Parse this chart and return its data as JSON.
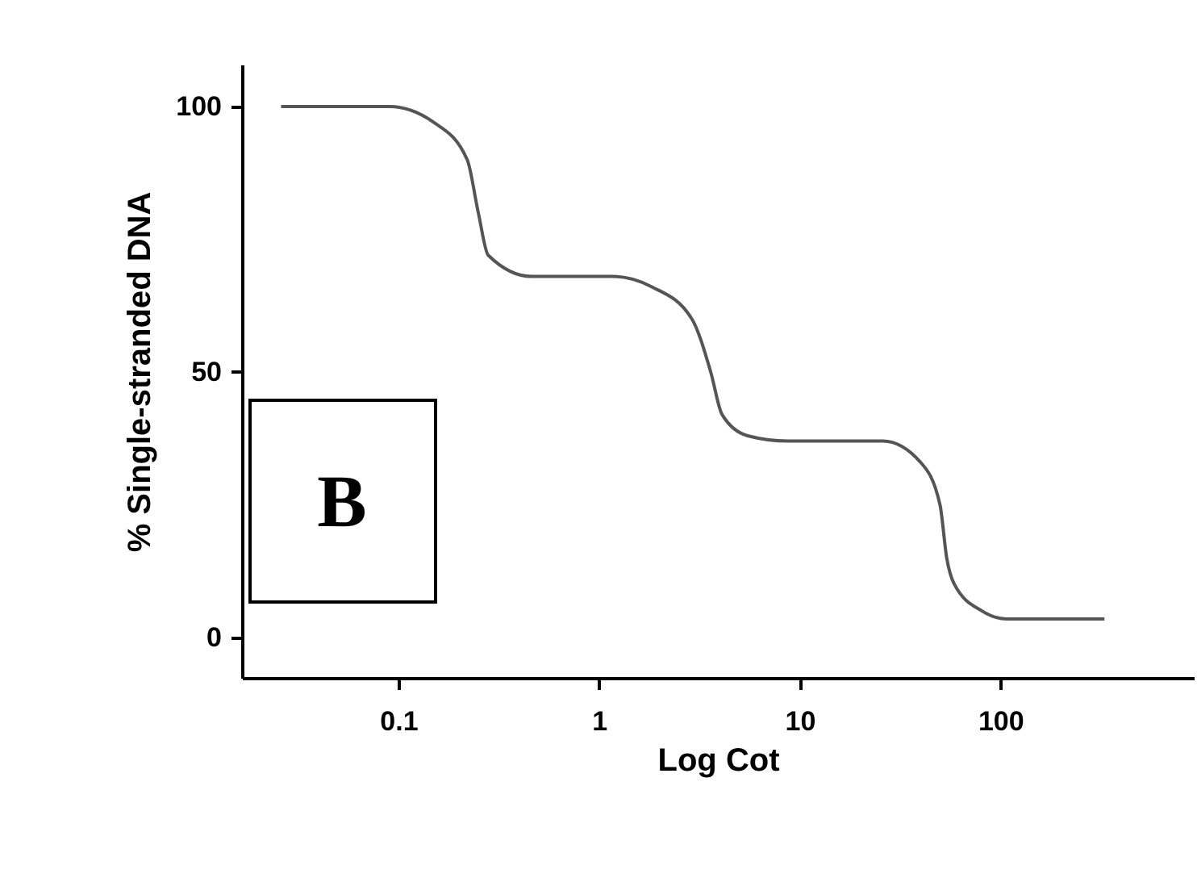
{
  "chart_data": {
    "type": "line",
    "xlabel": "Log Cot",
    "ylabel": "% Single-stranded DNA",
    "annotations": [
      "B"
    ],
    "log": "x",
    "grid": false,
    "marker": "none",
    "line_style": "solid",
    "xlim": [
      0.0166,
      920
    ],
    "ylim": [
      -7.6,
      107.9
    ],
    "xticks": [
      {
        "value": 0.1,
        "label": "0.1"
      },
      1,
      10,
      100
    ],
    "yticks": [
      0,
      50,
      100
    ],
    "series": [
      {
        "color": "#555555",
        "x": [
          0.026,
          0.09,
          0.15,
          0.22,
          0.25,
          0.28,
          0.46,
          1.16,
          1.84,
          2.9,
          3.6,
          4.1,
          5.5,
          8.7,
          26,
          40,
          50,
          54,
          59,
          81,
          107,
          330
        ],
        "values": [
          100,
          100,
          97,
          90,
          80,
          72,
          68,
          68,
          66,
          60,
          50,
          42,
          38,
          37,
          37,
          33,
          25,
          15,
          10,
          5,
          3.5,
          3.5
        ]
      }
    ]
  }
}
